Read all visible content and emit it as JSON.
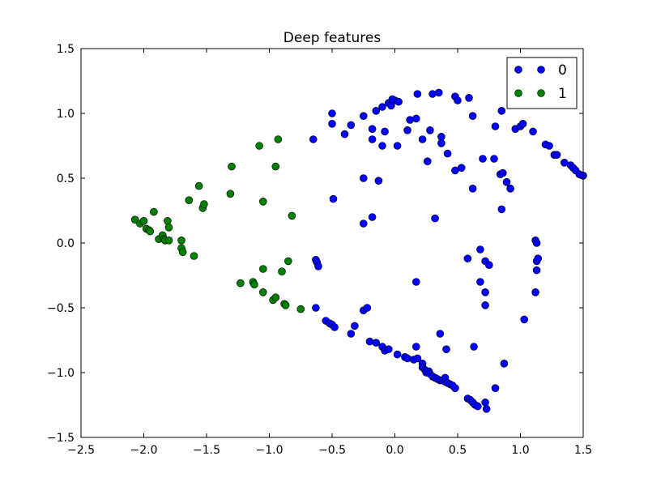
{
  "chart_data": {
    "type": "scatter",
    "title": "Deep features",
    "xlabel": "",
    "ylabel": "",
    "xlim": [
      -2.5,
      1.5
    ],
    "ylim": [
      -1.5,
      1.5
    ],
    "xticks": [
      "−2.5",
      "−2.0",
      "−1.5",
      "−1.0",
      "−0.5",
      "0.0",
      "0.5",
      "1.0",
      "1.5"
    ],
    "yticks": [
      "−1.5",
      "−1.0",
      "−0.5",
      "0.0",
      "0.5",
      "1.0",
      "1.5"
    ],
    "grid": false,
    "legend_position": "top-right",
    "series": [
      {
        "name": "0",
        "color": "#0000ff",
        "points": [
          [
            -0.65,
            0.8
          ],
          [
            -0.5,
            1.0
          ],
          [
            -0.5,
            0.92
          ],
          [
            -0.4,
            0.84
          ],
          [
            -0.35,
            0.91
          ],
          [
            -0.25,
            0.98
          ],
          [
            -0.18,
            0.88
          ],
          [
            -0.18,
            0.8
          ],
          [
            -0.15,
            1.02
          ],
          [
            -0.1,
            1.05
          ],
          [
            -0.05,
            1.08
          ],
          [
            -0.03,
            1.06
          ],
          [
            0.0,
            1.1
          ],
          [
            -0.02,
            1.11
          ],
          [
            0.03,
            1.09
          ],
          [
            -0.1,
            0.75
          ],
          [
            -0.08,
            0.86
          ],
          [
            0.02,
            0.75
          ],
          [
            0.1,
            0.87
          ],
          [
            0.12,
            0.95
          ],
          [
            0.17,
            0.96
          ],
          [
            0.18,
            1.15
          ],
          [
            0.22,
            0.8
          ],
          [
            0.26,
            0.63
          ],
          [
            0.28,
            0.87
          ],
          [
            0.3,
            1.15
          ],
          [
            0.35,
            1.16
          ],
          [
            0.37,
            0.82
          ],
          [
            0.37,
            0.77
          ],
          [
            0.42,
            0.69
          ],
          [
            0.48,
            1.13
          ],
          [
            0.5,
            1.1
          ],
          [
            0.48,
            0.56
          ],
          [
            0.53,
            0.58
          ],
          [
            0.59,
            1.12
          ],
          [
            0.62,
            0.98
          ],
          [
            0.62,
            0.42
          ],
          [
            0.7,
            0.65
          ],
          [
            0.79,
            0.65
          ],
          [
            0.8,
            0.9
          ],
          [
            0.84,
            0.53
          ],
          [
            0.86,
            0.54
          ],
          [
            0.89,
            0.47
          ],
          [
            0.92,
            0.42
          ],
          [
            0.85,
            1.02
          ],
          [
            0.85,
            0.26
          ],
          [
            0.96,
            0.88
          ],
          [
            1.0,
            0.9
          ],
          [
            1.02,
            0.92
          ],
          [
            1.1,
            0.86
          ],
          [
            1.2,
            0.76
          ],
          [
            1.23,
            0.75
          ],
          [
            1.27,
            0.68
          ],
          [
            1.29,
            0.68
          ],
          [
            1.35,
            0.62
          ],
          [
            1.4,
            0.6
          ],
          [
            1.42,
            0.58
          ],
          [
            1.44,
            0.56
          ],
          [
            1.47,
            0.53
          ],
          [
            1.5,
            0.52
          ],
          [
            -0.25,
            0.15
          ],
          [
            -0.18,
            0.2
          ],
          [
            -0.25,
            0.5
          ],
          [
            -0.13,
            0.48
          ],
          [
            -0.49,
            0.34
          ],
          [
            0.32,
            0.19
          ],
          [
            -0.63,
            -0.13
          ],
          [
            -0.62,
            -0.15
          ],
          [
            -0.61,
            -0.18
          ],
          [
            -0.63,
            -0.5
          ],
          [
            -0.55,
            -0.6
          ],
          [
            -0.52,
            -0.62
          ],
          [
            -0.5,
            -0.63
          ],
          [
            -0.48,
            -0.65
          ],
          [
            -0.35,
            -0.7
          ],
          [
            -0.32,
            -0.64
          ],
          [
            -0.25,
            -0.52
          ],
          [
            -0.22,
            -0.5
          ],
          [
            -0.2,
            -0.76
          ],
          [
            -0.15,
            -0.77
          ],
          [
            -0.1,
            -0.8
          ],
          [
            -0.08,
            -0.83
          ],
          [
            -0.05,
            -0.82
          ],
          [
            0.02,
            -0.86
          ],
          [
            0.08,
            -0.88
          ],
          [
            0.1,
            -0.89
          ],
          [
            0.15,
            -0.9
          ],
          [
            0.17,
            -0.8
          ],
          [
            0.18,
            -0.89
          ],
          [
            0.22,
            -0.93
          ],
          [
            0.22,
            -0.96
          ],
          [
            0.24,
            -0.98
          ],
          [
            0.25,
            -1.0
          ],
          [
            0.27,
            -0.99
          ],
          [
            0.28,
            -1.01
          ],
          [
            0.3,
            -1.03
          ],
          [
            0.32,
            -1.04
          ],
          [
            0.34,
            -1.05
          ],
          [
            0.36,
            -1.06
          ],
          [
            0.38,
            -1.06
          ],
          [
            0.4,
            -1.07
          ],
          [
            0.4,
            -1.04
          ],
          [
            0.42,
            -1.08
          ],
          [
            0.44,
            -1.09
          ],
          [
            0.46,
            -1.1
          ],
          [
            0.48,
            -1.12
          ],
          [
            0.36,
            -0.7
          ],
          [
            0.41,
            -0.82
          ],
          [
            0.17,
            -0.3
          ],
          [
            0.58,
            -1.2
          ],
          [
            0.6,
            -1.21
          ],
          [
            0.62,
            -1.23
          ],
          [
            0.64,
            -1.25
          ],
          [
            0.66,
            -1.26
          ],
          [
            0.72,
            -1.23
          ],
          [
            0.73,
            -1.28
          ],
          [
            0.8,
            -1.12
          ],
          [
            0.87,
            -0.93
          ],
          [
            0.63,
            -0.8
          ],
          [
            0.58,
            -0.12
          ],
          [
            0.68,
            -0.3
          ],
          [
            0.72,
            -0.48
          ],
          [
            0.72,
            -0.38
          ],
          [
            0.68,
            -0.05
          ],
          [
            0.72,
            -0.14
          ],
          [
            0.75,
            -0.17
          ],
          [
            1.03,
            -0.59
          ],
          [
            1.12,
            -0.38
          ],
          [
            1.13,
            -0.21
          ],
          [
            1.13,
            -0.14
          ],
          [
            1.14,
            -0.12
          ],
          [
            1.12,
            0.02
          ],
          [
            1.13,
            0.0
          ]
        ]
      },
      {
        "name": "1",
        "color": "#008000",
        "points": [
          [
            -2.07,
            0.18
          ],
          [
            -2.03,
            0.15
          ],
          [
            -2.0,
            0.17
          ],
          [
            -1.98,
            0.11
          ],
          [
            -1.96,
            0.1
          ],
          [
            -1.95,
            0.09
          ],
          [
            -1.92,
            0.24
          ],
          [
            -1.88,
            0.03
          ],
          [
            -1.85,
            0.06
          ],
          [
            -1.84,
            0.03
          ],
          [
            -1.83,
            0.02
          ],
          [
            -1.81,
            0.17
          ],
          [
            -1.8,
            0.12
          ],
          [
            -1.8,
            0.02
          ],
          [
            -1.7,
            0.02
          ],
          [
            -1.7,
            -0.04
          ],
          [
            -1.69,
            -0.07
          ],
          [
            -1.6,
            -0.1
          ],
          [
            -1.64,
            0.33
          ],
          [
            -1.56,
            0.44
          ],
          [
            -1.53,
            0.27
          ],
          [
            -1.52,
            0.3
          ],
          [
            -1.3,
            0.59
          ],
          [
            -1.31,
            0.38
          ],
          [
            -1.23,
            -0.31
          ],
          [
            -1.13,
            -0.3
          ],
          [
            -1.12,
            -0.32
          ],
          [
            -1.08,
            0.75
          ],
          [
            -1.05,
            0.32
          ],
          [
            -1.05,
            -0.2
          ],
          [
            -1.05,
            -0.38
          ],
          [
            -0.97,
            -0.44
          ],
          [
            -0.95,
            -0.42
          ],
          [
            -0.95,
            0.59
          ],
          [
            -0.93,
            0.8
          ],
          [
            -0.9,
            -0.22
          ],
          [
            -0.88,
            -0.47
          ],
          [
            -0.87,
            -0.48
          ],
          [
            -0.85,
            -0.14
          ],
          [
            -0.82,
            0.21
          ],
          [
            -0.75,
            -0.51
          ]
        ]
      }
    ]
  }
}
